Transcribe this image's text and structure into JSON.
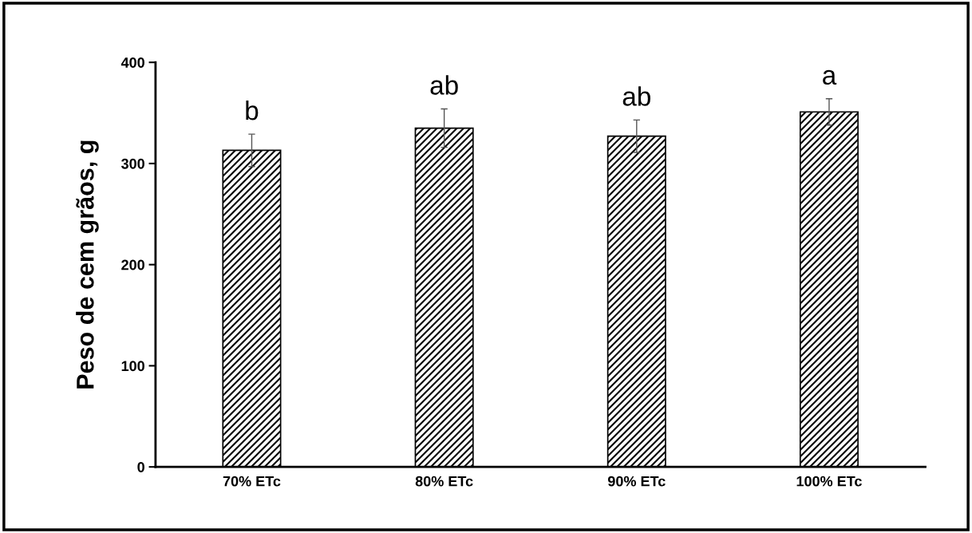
{
  "chart_data": {
    "type": "bar",
    "ylabel": "Peso de cem grãos, g",
    "categories": [
      "70% ETc",
      "80% ETc",
      "90% ETc",
      "100% ETc"
    ],
    "series": [
      {
        "color": "#000000",
        "values": [
          313,
          335,
          327,
          351
        ],
        "errors": [
          16,
          19,
          16,
          13
        ]
      }
    ],
    "ylim": [
      0,
      400
    ],
    "yticks": [
      0,
      100,
      200,
      300,
      400
    ],
    "grid": false,
    "legend": false,
    "annotations": [
      "b",
      "ab",
      "ab",
      "a"
    ]
  }
}
